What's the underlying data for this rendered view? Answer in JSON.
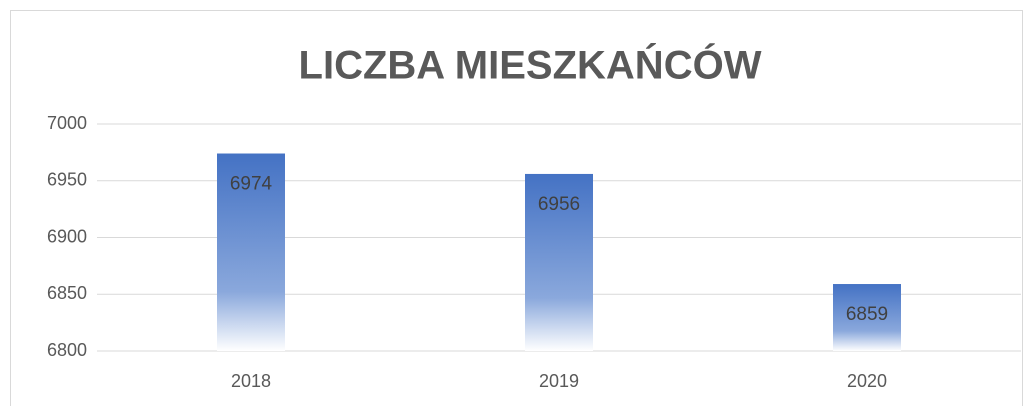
{
  "chart_data": {
    "type": "bar",
    "title": "LICZBA MIESZKAŃCÓW",
    "categories": [
      "2018",
      "2019",
      "2020"
    ],
    "values": [
      6974,
      6956,
      6859
    ],
    "color": "#4472c4",
    "ylim": [
      6800,
      7000
    ],
    "yticks": [
      6800,
      6850,
      6900,
      6950,
      7000
    ],
    "grid": true
  }
}
